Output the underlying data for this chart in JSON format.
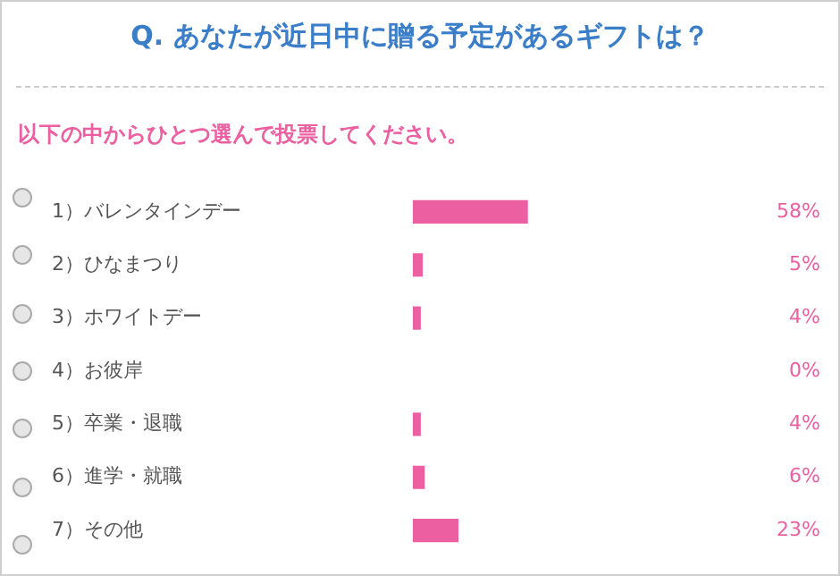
{
  "chart_data": {
    "type": "bar",
    "orientation": "horizontal",
    "title": "Q. あなたが近日中に贈る予定があるギフトは？",
    "subtitle": "以下の中からひとつ選んで投票してください。",
    "categories": [
      "1）バレンタインデー",
      "2）ひなまつり",
      "3）ホワイトデー",
      "4）お彼岸",
      "5）卒業・退職",
      "6）進学・就職",
      "7）その他"
    ],
    "values": [
      58,
      5,
      4,
      0,
      4,
      6,
      23
    ],
    "value_labels": [
      "58%",
      "5%",
      "4%",
      "0%",
      "4%",
      "6%",
      "23%"
    ],
    "color": "#ec5fa0",
    "tick_labels": "y"
  }
}
